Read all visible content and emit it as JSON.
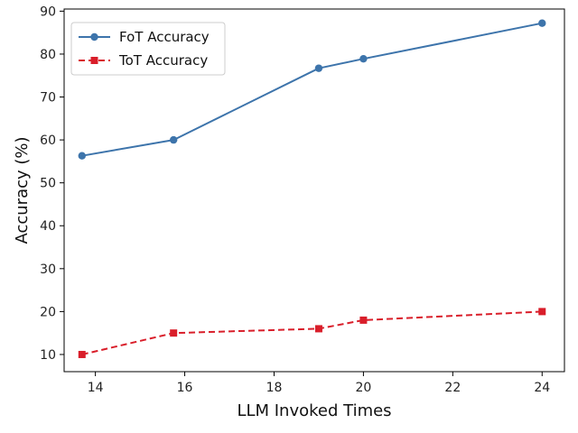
{
  "chart_data": {
    "type": "line",
    "title": "",
    "xlabel": "LLM Invoked Times",
    "ylabel": "Accuracy (%)",
    "xlim": [
      13.3,
      24.5
    ],
    "ylim": [
      6,
      90.5
    ],
    "xticks": [
      14,
      16,
      18,
      20,
      22,
      24
    ],
    "yticks": [
      10,
      20,
      30,
      40,
      50,
      60,
      70,
      80,
      90
    ],
    "grid": false,
    "legend_position": "upper-left",
    "series": [
      {
        "name": "FoT Accuracy",
        "color": "#3d74ab",
        "line_style": "solid",
        "marker": "circle",
        "x": [
          13.7,
          15.75,
          19.0,
          20.0,
          24.0
        ],
        "y": [
          56.3,
          60.0,
          76.7,
          78.9,
          87.2
        ]
      },
      {
        "name": "ToT Accuracy",
        "color": "#d91e2a",
        "line_style": "dashed",
        "marker": "square",
        "x": [
          13.7,
          15.75,
          19.0,
          20.0,
          24.0
        ],
        "y": [
          10.0,
          15.0,
          16.0,
          18.0,
          20.0
        ]
      }
    ]
  }
}
